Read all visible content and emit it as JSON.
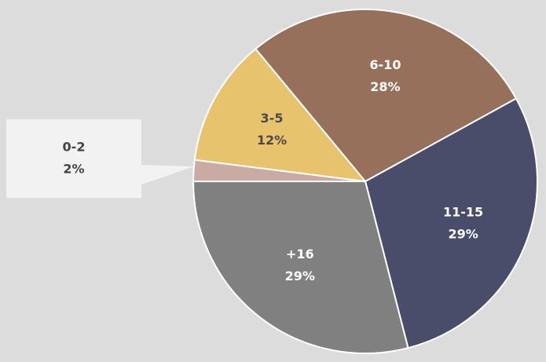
{
  "chart_data": {
    "type": "pie",
    "categories": [
      "0-2",
      "3-5",
      "6-10",
      "11-15",
      "+16"
    ],
    "values": [
      2,
      12,
      28,
      29,
      29
    ],
    "value_labels": [
      "2%",
      "12%",
      "28%",
      "29%",
      "29%"
    ],
    "colors": [
      "#c9aba3",
      "#e8c36e",
      "#96705a",
      "#4a4d6a",
      "#808080"
    ],
    "label_colors": [
      "#444444",
      "#4a4a4a",
      "#ffffff",
      "#ffffff",
      "#ffffff"
    ],
    "background": "#dcdcdc"
  }
}
